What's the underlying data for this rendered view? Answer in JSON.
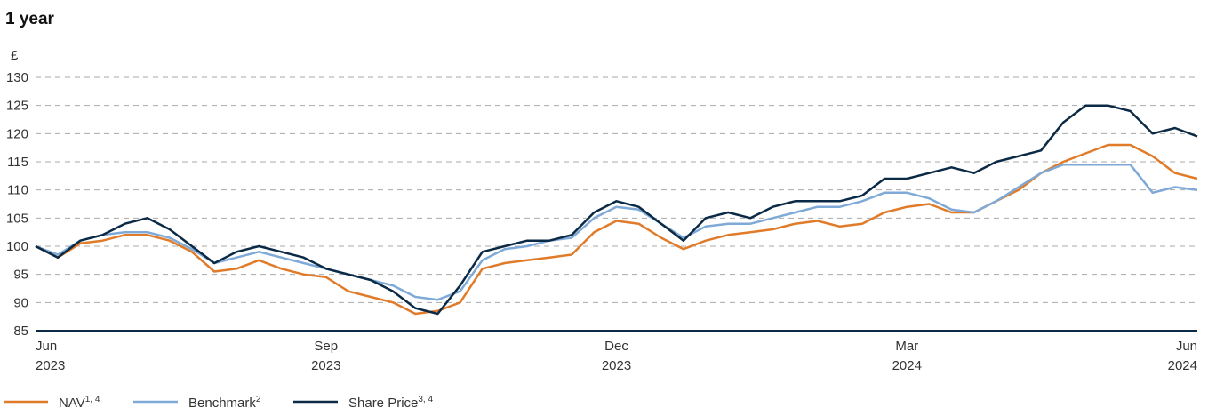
{
  "chart_data": {
    "type": "line",
    "title": "1 year",
    "y_unit": "£",
    "categories": [
      "Jun 2023",
      null,
      null,
      null,
      null,
      null,
      null,
      null,
      null,
      null,
      null,
      null,
      null,
      "Sep 2023",
      null,
      null,
      null,
      null,
      null,
      null,
      null,
      null,
      null,
      null,
      null,
      null,
      "Dec 2023",
      null,
      null,
      null,
      null,
      null,
      null,
      null,
      null,
      null,
      null,
      null,
      null,
      "Mar 2024",
      null,
      null,
      null,
      null,
      null,
      null,
      null,
      null,
      null,
      null,
      null,
      null,
      "Jun 2024"
    ],
    "series": [
      {
        "name": "NAV",
        "footnote": "1, 4",
        "color": "#e07b2a",
        "values": [
          100,
          98,
          100.5,
          101,
          102,
          102,
          101,
          99,
          95.5,
          96,
          97.5,
          96,
          95,
          94.5,
          92,
          91,
          90,
          88,
          88.5,
          90,
          96,
          97,
          97.5,
          98,
          98.5,
          102.5,
          104.5,
          104,
          101.5,
          99.5,
          101,
          102,
          102.5,
          103,
          104,
          104.5,
          103.5,
          104,
          106,
          107,
          107.5,
          106,
          106,
          108,
          110,
          113,
          115,
          116.5,
          118,
          118,
          116,
          113,
          112
        ]
      },
      {
        "name": "Benchmark",
        "footnote": "2",
        "color": "#7fa9d6",
        "values": [
          100,
          98.5,
          101,
          102,
          102.5,
          102.5,
          101.5,
          99.5,
          97,
          98,
          99,
          98,
          97,
          96,
          95,
          94,
          93,
          91,
          90.5,
          92,
          97.5,
          99.5,
          100,
          101,
          101.5,
          105,
          107,
          106.5,
          104,
          101.5,
          103.5,
          104,
          104,
          105,
          106,
          107,
          107,
          108,
          109.5,
          109.5,
          108.5,
          106.5,
          106,
          108,
          110.5,
          113,
          114.5,
          114.5,
          114.5,
          114.5,
          109.5,
          110.5,
          110
        ]
      },
      {
        "name": "Share Price",
        "footnote": "3, 4",
        "color": "#0b2a45",
        "values": [
          100,
          98,
          101,
          102,
          104,
          105,
          103,
          100,
          97,
          99,
          100,
          99,
          98,
          96,
          95,
          94,
          92,
          89,
          88,
          93,
          99,
          100,
          101,
          101,
          102,
          106,
          108,
          107,
          104,
          101,
          105,
          106,
          105,
          107,
          108,
          108,
          108,
          109,
          112,
          112,
          113,
          114,
          113,
          115,
          116,
          117,
          122,
          125,
          125,
          124,
          120,
          121,
          119.5
        ]
      }
    ],
    "ylim": [
      85,
      130
    ],
    "yticks": [
      85,
      90,
      95,
      100,
      105,
      110,
      115,
      120,
      125,
      130
    ],
    "grid": true
  }
}
